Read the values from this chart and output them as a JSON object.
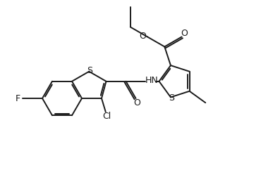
{
  "bg_color": "#ffffff",
  "line_color": "#1a1a1a",
  "line_width": 1.4,
  "font_size": 8.5,
  "fig_width": 3.7,
  "fig_height": 2.42,
  "dpi": 100,
  "xlim": [
    0,
    370
  ],
  "ylim": [
    0,
    242
  ]
}
